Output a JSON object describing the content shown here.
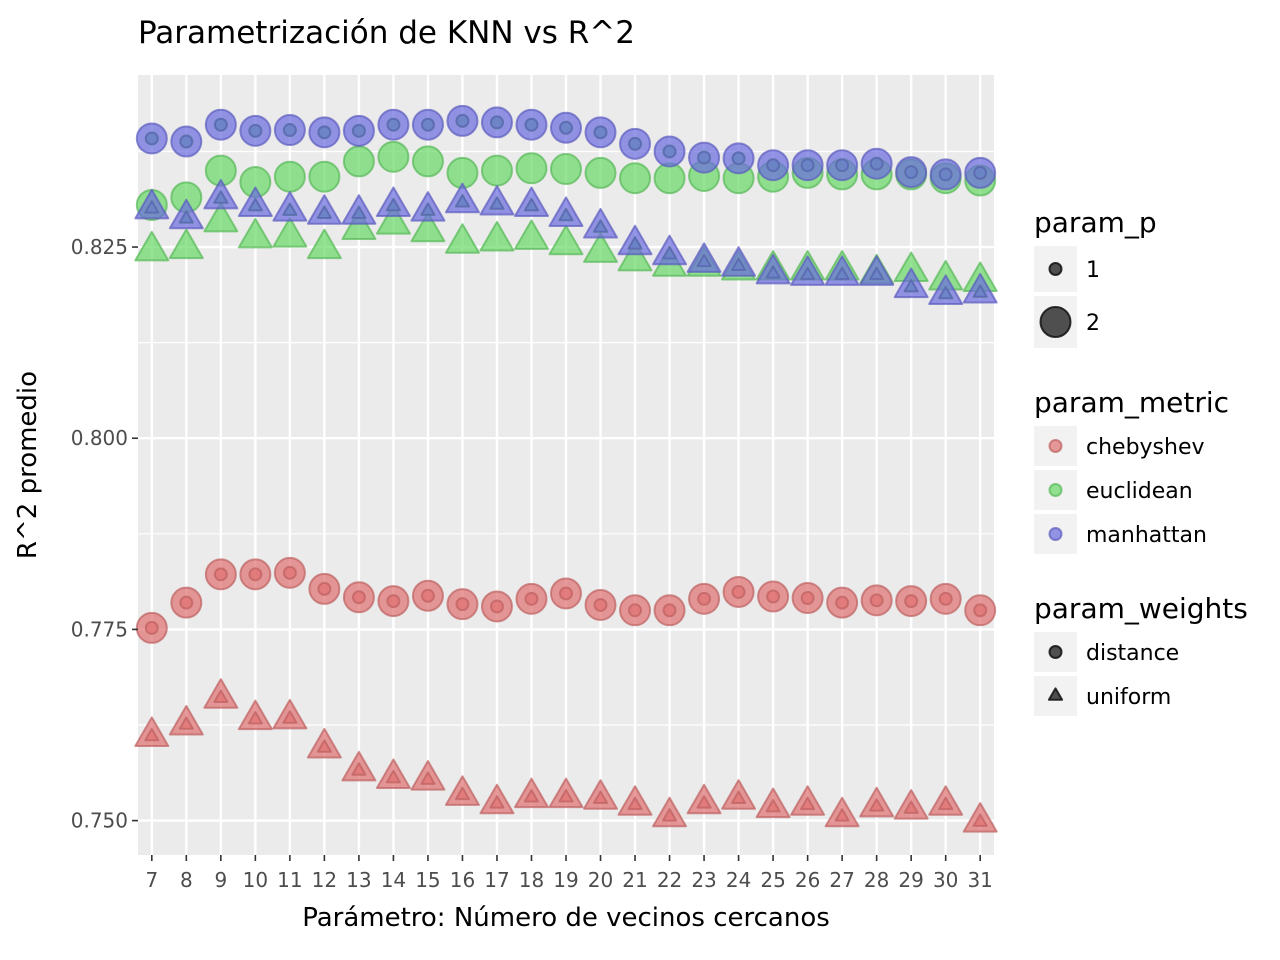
{
  "chart_data": {
    "type": "scatter",
    "title": "Parametrización de KNN vs R^2",
    "xlabel": "Parámetro: Número de vecinos cercanos",
    "ylabel": "R^2 promedio",
    "x": [
      7,
      8,
      9,
      10,
      11,
      12,
      13,
      14,
      15,
      16,
      17,
      18,
      19,
      20,
      21,
      22,
      23,
      24,
      25,
      26,
      27,
      28,
      29,
      30,
      31
    ],
    "xlim": [
      6.6,
      31.4
    ],
    "ylim": [
      0.7455,
      0.8475
    ],
    "yticks": [
      0.75,
      0.775,
      0.8,
      0.825
    ],
    "ytick_labels": [
      "0.750",
      "0.775",
      "0.800",
      "0.825"
    ],
    "grid": true,
    "legend_position": "right",
    "legends": [
      {
        "title": "param_p",
        "entries": [
          {
            "label": "1",
            "size": "small"
          },
          {
            "label": "2",
            "size": "large"
          }
        ]
      },
      {
        "title": "param_metric",
        "entries": [
          {
            "label": "chebyshev",
            "color": "#e07070"
          },
          {
            "label": "euclidean",
            "color": "#66d966"
          },
          {
            "label": "manhattan",
            "color": "#6b6be0"
          }
        ]
      },
      {
        "title": "param_weights",
        "entries": [
          {
            "label": "distance",
            "shape": "circle"
          },
          {
            "label": "uniform",
            "shape": "triangle"
          }
        ]
      }
    ],
    "colors": {
      "chebyshev": "#e07070",
      "euclidean": "#66d966",
      "manhattan": "#6b6be0"
    },
    "series": [
      {
        "metric": "chebyshev",
        "weights": "distance",
        "p": 1,
        "values": [
          0.7752,
          0.7785,
          0.7822,
          0.7822,
          0.7824,
          0.7803,
          0.7792,
          0.7787,
          0.7794,
          0.7783,
          0.778,
          0.779,
          0.7797,
          0.7782,
          0.7775,
          0.7775,
          0.779,
          0.7799,
          0.7793,
          0.7791,
          0.7785,
          0.7788,
          0.7787,
          0.779,
          0.7775
        ]
      },
      {
        "metric": "chebyshev",
        "weights": "distance",
        "p": 2,
        "values": [
          0.7752,
          0.7785,
          0.7822,
          0.7822,
          0.7824,
          0.7803,
          0.7792,
          0.7787,
          0.7794,
          0.7783,
          0.778,
          0.779,
          0.7797,
          0.7782,
          0.7775,
          0.7775,
          0.779,
          0.7799,
          0.7793,
          0.7791,
          0.7785,
          0.7788,
          0.7787,
          0.779,
          0.7775
        ]
      },
      {
        "metric": "chebyshev",
        "weights": "uniform",
        "p": 1,
        "values": [
          0.761,
          0.7625,
          0.766,
          0.7632,
          0.7633,
          0.7595,
          0.7565,
          0.7555,
          0.7553,
          0.7533,
          0.7522,
          0.753,
          0.753,
          0.7528,
          0.752,
          0.7505,
          0.7522,
          0.7528,
          0.7517,
          0.752,
          0.7505,
          0.7518,
          0.7515,
          0.752,
          0.7498
        ]
      },
      {
        "metric": "chebyshev",
        "weights": "uniform",
        "p": 2,
        "values": [
          0.761,
          0.7625,
          0.766,
          0.7632,
          0.7633,
          0.7595,
          0.7565,
          0.7555,
          0.7553,
          0.7533,
          0.7522,
          0.753,
          0.753,
          0.7528,
          0.752,
          0.7505,
          0.7522,
          0.7528,
          0.7517,
          0.752,
          0.7505,
          0.7518,
          0.7515,
          0.752,
          0.7498
        ]
      },
      {
        "metric": "euclidean",
        "weights": "distance",
        "p": 1,
        "values": [
          0.8392,
          0.8388,
          0.841,
          0.8402,
          0.8403,
          0.84,
          0.8402,
          0.841,
          0.841,
          0.8415,
          0.8413,
          0.841,
          0.8406,
          0.84,
          0.8385,
          0.8375,
          0.8367,
          0.8366,
          0.8357,
          0.8357,
          0.8357,
          0.8359,
          0.8348,
          0.8345,
          0.8347
        ]
      },
      {
        "metric": "euclidean",
        "weights": "distance",
        "p": 2,
        "values": [
          0.8305,
          0.8315,
          0.835,
          0.8335,
          0.8342,
          0.8342,
          0.8362,
          0.8368,
          0.8362,
          0.8347,
          0.835,
          0.8353,
          0.8352,
          0.8347,
          0.834,
          0.834,
          0.8343,
          0.834,
          0.8342,
          0.8347,
          0.8345,
          0.8345,
          0.8345,
          0.834,
          0.8337
        ]
      },
      {
        "metric": "euclidean",
        "weights": "uniform",
        "p": 1,
        "values": [
          0.83,
          0.8287,
          0.8313,
          0.8303,
          0.8297,
          0.8293,
          0.8293,
          0.8303,
          0.8297,
          0.8308,
          0.8305,
          0.8303,
          0.829,
          0.8275,
          0.8253,
          0.824,
          0.823,
          0.8225,
          0.8215,
          0.8213,
          0.8213,
          0.8213,
          0.8197,
          0.8188,
          0.819
        ]
      },
      {
        "metric": "euclidean",
        "weights": "uniform",
        "p": 2,
        "values": [
          0.8245,
          0.8248,
          0.8283,
          0.8262,
          0.8263,
          0.8248,
          0.8273,
          0.828,
          0.827,
          0.8255,
          0.8258,
          0.826,
          0.8253,
          0.8243,
          0.8232,
          0.8225,
          0.8225,
          0.822,
          0.822,
          0.822,
          0.822,
          0.8215,
          0.8218,
          0.8207,
          0.8205
        ]
      },
      {
        "metric": "manhattan",
        "weights": "distance",
        "p": 1,
        "values": [
          0.8392,
          0.8388,
          0.841,
          0.8402,
          0.8403,
          0.84,
          0.8402,
          0.841,
          0.841,
          0.8415,
          0.8413,
          0.841,
          0.8406,
          0.84,
          0.8385,
          0.8375,
          0.8367,
          0.8366,
          0.8357,
          0.8357,
          0.8357,
          0.8359,
          0.8348,
          0.8345,
          0.8347
        ]
      },
      {
        "metric": "manhattan",
        "weights": "distance",
        "p": 2,
        "values": [
          0.8392,
          0.8388,
          0.841,
          0.8402,
          0.8403,
          0.84,
          0.8402,
          0.841,
          0.841,
          0.8415,
          0.8413,
          0.841,
          0.8406,
          0.84,
          0.8385,
          0.8375,
          0.8367,
          0.8366,
          0.8357,
          0.8357,
          0.8357,
          0.8359,
          0.8348,
          0.8345,
          0.8347
        ]
      },
      {
        "metric": "manhattan",
        "weights": "uniform",
        "p": 1,
        "values": [
          0.83,
          0.8287,
          0.8313,
          0.8303,
          0.8297,
          0.8293,
          0.8293,
          0.8303,
          0.8297,
          0.8308,
          0.8305,
          0.8303,
          0.829,
          0.8275,
          0.8253,
          0.824,
          0.823,
          0.8225,
          0.8215,
          0.8213,
          0.8213,
          0.8213,
          0.8197,
          0.8188,
          0.819
        ]
      },
      {
        "metric": "manhattan",
        "weights": "uniform",
        "p": 2,
        "values": [
          0.83,
          0.8287,
          0.8313,
          0.8303,
          0.8297,
          0.8293,
          0.8293,
          0.8303,
          0.8297,
          0.8308,
          0.8305,
          0.8303,
          0.829,
          0.8275,
          0.8253,
          0.824,
          0.823,
          0.8225,
          0.8215,
          0.8213,
          0.8213,
          0.8213,
          0.8197,
          0.8188,
          0.819
        ]
      }
    ]
  }
}
